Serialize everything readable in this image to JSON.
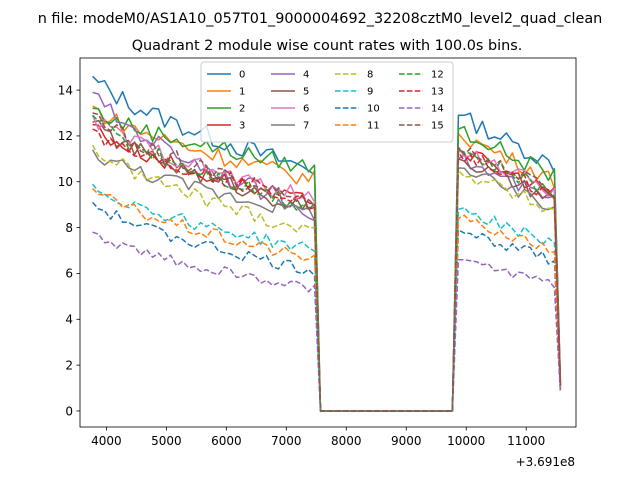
{
  "chart_data": {
    "type": "line",
    "suptitle": "n file: modeM0/AS1A10_057T01_9000004692_32208cztM0_level2_quad_clean",
    "title": "Quadrant 2 module wise count rates with 100.0s bins.",
    "xlabel": "",
    "ylabel": "",
    "x_offset_label": "+3.691e8",
    "xlim": [
      3560,
      11830
    ],
    "ylim": [
      -0.7,
      15.4
    ],
    "xticks": [
      4000,
      5000,
      6000,
      7000,
      8000,
      9000,
      10000,
      11000
    ],
    "yticks": [
      0,
      2,
      4,
      6,
      8,
      10,
      12,
      14
    ],
    "legend_position": "upper-center",
    "grid": false,
    "x_start": 3770,
    "x_step": 100,
    "n_points": 79,
    "gap_start_index": 38,
    "gap_end_index": 60,
    "series": [
      {
        "name": "0",
        "color": "#1f77b4",
        "style": "solid",
        "start": 14.6,
        "end_first": 10.5,
        "start2": 12.9,
        "end": 1.3
      },
      {
        "name": "1",
        "color": "#ff7f0e",
        "style": "solid",
        "start": 13.3,
        "end_first": 10.1,
        "start2": 12.1,
        "end": 1.2
      },
      {
        "name": "2",
        "color": "#2ca02c",
        "style": "solid",
        "start": 13.2,
        "end_first": 10.6,
        "start2": 12.3,
        "end": 1.4
      },
      {
        "name": "3",
        "color": "#d62728",
        "style": "solid",
        "start": 12.5,
        "end_first": 9.0,
        "start2": 11.4,
        "end": 1.2
      },
      {
        "name": "4",
        "color": "#9467bd",
        "style": "solid",
        "start": 13.9,
        "end_first": 8.7,
        "start2": 11.0,
        "end": 1.0
      },
      {
        "name": "5",
        "color": "#8c564b",
        "style": "solid",
        "start": 12.6,
        "end_first": 8.8,
        "start2": 11.0,
        "end": 1.1
      },
      {
        "name": "6",
        "color": "#e377c2",
        "style": "solid",
        "start": 12.9,
        "end_first": 9.2,
        "start2": 11.5,
        "end": 1.2
      },
      {
        "name": "7",
        "color": "#7f7f7f",
        "style": "solid",
        "start": 11.4,
        "end_first": 8.6,
        "start2": 10.6,
        "end": 1.1
      },
      {
        "name": "8",
        "color": "#bcbd22",
        "style": "dashed",
        "start": 11.6,
        "end_first": 7.8,
        "start2": 10.5,
        "end": 1.0
      },
      {
        "name": "9",
        "color": "#17becf",
        "style": "dashed",
        "start": 9.9,
        "end_first": 7.0,
        "start2": 8.8,
        "end": 0.9
      },
      {
        "name": "10",
        "color": "#1f77b4",
        "style": "dashed",
        "start": 9.1,
        "end_first": 6.1,
        "start2": 7.9,
        "end": 0.9
      },
      {
        "name": "11",
        "color": "#ff7f0e",
        "style": "dashed",
        "start": 9.7,
        "end_first": 6.6,
        "start2": 8.4,
        "end": 0.9
      },
      {
        "name": "12",
        "color": "#2ca02c",
        "style": "dashed",
        "start": 12.9,
        "end_first": 8.9,
        "start2": 11.4,
        "end": 1.1
      },
      {
        "name": "13",
        "color": "#d62728",
        "style": "dashed",
        "start": 12.3,
        "end_first": 9.2,
        "start2": 11.3,
        "end": 1.1
      },
      {
        "name": "14",
        "color": "#9467bd",
        "style": "dashed",
        "start": 7.8,
        "end_first": 5.3,
        "start2": 6.6,
        "end": 0.8
      },
      {
        "name": "15",
        "color": "#8c564b",
        "style": "dashed",
        "start": 13.0,
        "end_first": 9.0,
        "start2": 11.5,
        "end": 1.1
      }
    ]
  }
}
